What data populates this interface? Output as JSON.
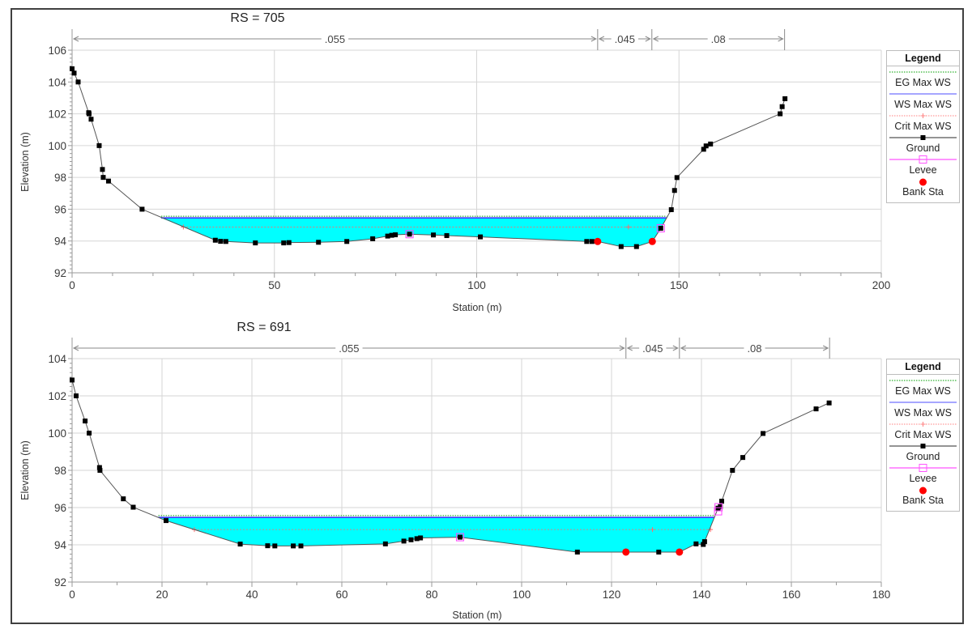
{
  "chart_data": [
    {
      "type": "line",
      "title": "RS = 705",
      "xlabel": "Station (m)",
      "ylabel": "Elevation (m)",
      "xlim": [
        0,
        200
      ],
      "ylim": [
        92,
        106
      ],
      "xticks": [
        0,
        50,
        100,
        150,
        200
      ],
      "xminor_step": 10,
      "yticks": [
        92,
        94,
        96,
        98,
        100,
        102,
        104,
        106
      ],
      "yminor_step": 0.25,
      "grid": true,
      "legend_position": "right",
      "manning_n": [
        {
          "from": 0,
          "to": 129.9,
          "label": ".055"
        },
        {
          "from": 129.9,
          "to": 143.3,
          "label": ".045"
        },
        {
          "from": 143.3,
          "to": 176.1,
          "label": ".08"
        }
      ],
      "series": [
        {
          "name": "EG Max WS",
          "kind": "level",
          "value": 95.56,
          "x_range": [
            22.0,
            147.0
          ],
          "color": "#00a000"
        },
        {
          "name": "WS Max WS",
          "kind": "level",
          "value": 95.45,
          "x_range": [
            22.0,
            147.0
          ],
          "color": "#3a3aff",
          "fill": "#00ffff"
        },
        {
          "name": "Crit Max WS",
          "kind": "level",
          "value": 94.88,
          "x_range": [
            27.5,
            145.7
          ],
          "markers_x": [
            27.5,
            137.5
          ],
          "color": "#ff6a6a"
        },
        {
          "name": "Ground",
          "kind": "line",
          "color": "#000000",
          "line_color": "#555555",
          "points": [
            [
              0,
              104.83
            ],
            [
              0.5,
              104.56
            ],
            [
              1.5,
              104.0
            ],
            [
              4.1,
              102.07
            ],
            [
              4.2,
              102.0
            ],
            [
              4.7,
              101.66
            ],
            [
              6.7,
              100.0
            ],
            [
              7.5,
              98.5
            ],
            [
              7.7,
              98.0
            ],
            [
              9.0,
              97.77
            ],
            [
              17.3,
              96.0
            ],
            [
              35.4,
              94.05
            ],
            [
              36.7,
              93.98
            ],
            [
              38.0,
              93.97
            ],
            [
              45.3,
              93.88
            ],
            [
              52.3,
              93.88
            ],
            [
              53.6,
              93.9
            ],
            [
              60.9,
              93.92
            ],
            [
              67.9,
              93.97
            ],
            [
              74.3,
              94.14
            ],
            [
              78.0,
              94.31
            ],
            [
              79.0,
              94.36
            ],
            [
              79.9,
              94.39
            ],
            [
              83.4,
              94.43
            ],
            [
              89.3,
              94.38
            ],
            [
              92.6,
              94.34
            ],
            [
              100.9,
              94.26
            ],
            [
              127.2,
              93.97
            ],
            [
              128.5,
              93.97
            ],
            [
              129.9,
              93.97
            ],
            [
              135.7,
              93.65
            ],
            [
              139.5,
              93.65
            ],
            [
              143.4,
              93.97
            ],
            [
              145.5,
              94.8
            ],
            [
              148.1,
              95.97
            ],
            [
              148.9,
              97.18
            ],
            [
              149.5,
              97.99
            ],
            [
              156.1,
              99.77
            ],
            [
              156.7,
              99.98
            ],
            [
              157.8,
              100.1
            ],
            [
              175.0,
              102.0
            ],
            [
              175.5,
              102.45
            ],
            [
              176.2,
              102.95
            ]
          ]
        },
        {
          "name": "Levee",
          "kind": "markers",
          "color": "#ff44ff",
          "points": [
            [
              83.4,
              94.43
            ],
            [
              145.5,
              94.8
            ]
          ]
        },
        {
          "name": "Bank Sta",
          "kind": "markers",
          "color": "#ff0000",
          "points": [
            [
              129.9,
              93.97
            ],
            [
              143.4,
              93.97
            ]
          ]
        }
      ]
    },
    {
      "type": "line",
      "title": "RS = 691",
      "xlabel": "Station (m)",
      "ylabel": "Elevation (m)",
      "xlim": [
        0,
        180
      ],
      "ylim": [
        92,
        104
      ],
      "xticks": [
        0,
        20,
        40,
        60,
        80,
        100,
        120,
        140,
        160,
        180
      ],
      "xminor_step": 10,
      "yticks": [
        92,
        94,
        96,
        98,
        100,
        102,
        104
      ],
      "yminor_step": 0.25,
      "grid": true,
      "legend_position": "right",
      "manning_n": [
        {
          "from": 0,
          "to": 123.2,
          "label": ".055"
        },
        {
          "from": 123.2,
          "to": 135.1,
          "label": ".045"
        },
        {
          "from": 135.1,
          "to": 168.5,
          "label": ".08"
        }
      ],
      "series": [
        {
          "name": "EG Max WS",
          "kind": "level",
          "value": 95.57,
          "x_range": [
            19.2,
            142.9
          ],
          "color": "#00a000"
        },
        {
          "name": "WS Max WS",
          "kind": "level",
          "value": 95.47,
          "x_range": [
            19.2,
            142.9
          ],
          "color": "#3a3aff",
          "fill": "#00ffff"
        },
        {
          "name": "Crit Max WS",
          "kind": "level",
          "value": 94.82,
          "x_range": [
            27.2,
            142.0
          ],
          "markers_x": [
            27.2,
            129.1,
            142.0
          ],
          "color": "#ff6a6a"
        },
        {
          "name": "Ground",
          "kind": "line",
          "color": "#000000",
          "line_color": "#555555",
          "points": [
            [
              0,
              102.85
            ],
            [
              0.9,
              102.0
            ],
            [
              2.9,
              100.65
            ],
            [
              3.8,
              100.0
            ],
            [
              6.1,
              98.15
            ],
            [
              6.2,
              98.0
            ],
            [
              11.4,
              96.47
            ],
            [
              13.6,
              96.02
            ],
            [
              20.9,
              95.3
            ],
            [
              37.4,
              94.04
            ],
            [
              43.5,
              93.95
            ],
            [
              45.1,
              93.94
            ],
            [
              49.2,
              93.94
            ],
            [
              50.9,
              93.94
            ],
            [
              69.7,
              94.05
            ],
            [
              73.8,
              94.2
            ],
            [
              75.4,
              94.27
            ],
            [
              76.7,
              94.33
            ],
            [
              77.5,
              94.37
            ],
            [
              86.3,
              94.41
            ],
            [
              112.4,
              93.61
            ],
            [
              123.2,
              93.61
            ],
            [
              130.5,
              93.61
            ],
            [
              135.1,
              93.61
            ],
            [
              138.8,
              94.05
            ],
            [
              140.4,
              94.02
            ],
            [
              140.7,
              94.17
            ],
            [
              143.7,
              95.97
            ],
            [
              144.2,
              96.05
            ],
            [
              144.5,
              96.34
            ],
            [
              146.9,
              98.0
            ],
            [
              149.2,
              98.69
            ],
            [
              153.7,
              99.98
            ],
            [
              165.5,
              101.3
            ],
            [
              168.4,
              101.62
            ]
          ]
        },
        {
          "name": "Levee",
          "kind": "markers",
          "color": "#ff44ff",
          "points": [
            [
              86.3,
              94.41
            ],
            [
              143.7,
              95.8
            ],
            [
              143.8,
              96.02
            ]
          ]
        },
        {
          "name": "Bank Sta",
          "kind": "markers",
          "color": "#ff0000",
          "points": [
            [
              123.2,
              93.61
            ],
            [
              135.1,
              93.61
            ]
          ]
        }
      ]
    }
  ],
  "legend": {
    "title": "Legend",
    "items": [
      {
        "label": "EG Max WS",
        "symbol": "dotted-line",
        "color": "#00a000"
      },
      {
        "label": "WS Max WS",
        "symbol": "solid-line",
        "color": "#7070ff"
      },
      {
        "label": "Crit Max WS",
        "symbol": "dotted-line-plus",
        "color": "#ff8080"
      },
      {
        "label": "Ground",
        "symbol": "line-square",
        "color": "#000000",
        "line_color": "#555555"
      },
      {
        "label": "Levee",
        "symbol": "line-hollow-square",
        "color": "#ff55ff"
      },
      {
        "label": "Bank Sta",
        "symbol": "circle",
        "color": "#ff0000"
      }
    ]
  }
}
